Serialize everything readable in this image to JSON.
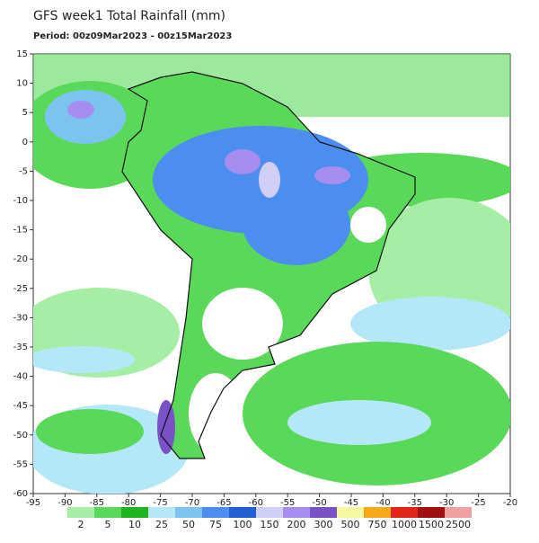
{
  "chart_data": {
    "type": "map",
    "title": "GFS week1 Total Rainfall (mm)",
    "subtitle": "Period: 00z09Mar2023 - 00z15Mar2023",
    "xlim": [
      -95,
      -20
    ],
    "ylim": [
      -60,
      15
    ],
    "xticks": [
      -95,
      -90,
      -85,
      -80,
      -75,
      -70,
      -65,
      -60,
      -55,
      -50,
      -45,
      -40,
      -35,
      -30,
      -25,
      -20
    ],
    "yticks": [
      15,
      10,
      5,
      0,
      -5,
      -10,
      -15,
      -20,
      -25,
      -30,
      -35,
      -40,
      -45,
      -50,
      -55,
      -60
    ],
    "colorbar": {
      "labels": [
        2,
        5,
        10,
        25,
        50,
        75,
        100,
        150,
        200,
        300,
        500,
        750,
        1000,
        1500,
        2500
      ],
      "colors": [
        "#a6eea6",
        "#5ad85a",
        "#20b420",
        "#b4e8f8",
        "#7cc4f0",
        "#4c8ef0",
        "#2060d0",
        "#cfcff5",
        "#a68ef0",
        "#7a52c8",
        "#f8f8a0",
        "#f8a818",
        "#e02818",
        "#a01010",
        "#f0a0a0"
      ]
    }
  }
}
